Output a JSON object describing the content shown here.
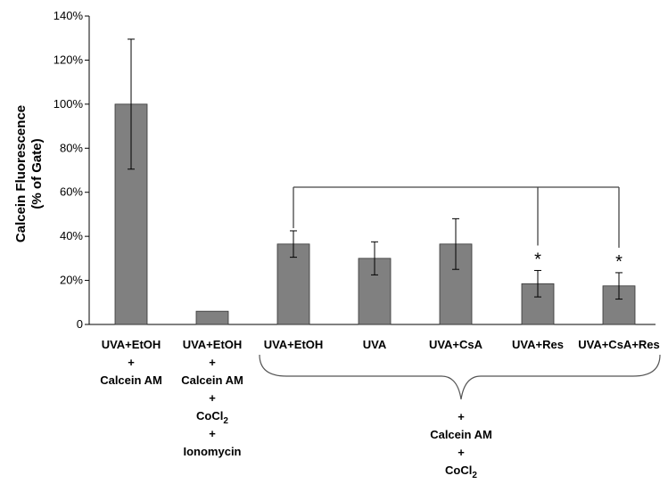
{
  "chart_data": {
    "type": "bar",
    "ylabel_lines": [
      "Calcein Fluorescence",
      "(% of Gate)"
    ],
    "ylim": [
      0,
      140
    ],
    "yticks": [
      "0",
      "20%",
      "40%",
      "60%",
      "80%",
      "100%",
      "120%",
      "140%"
    ],
    "categories": [
      [
        "UVA+EtOH",
        "+",
        "Calcein AM"
      ],
      [
        "UVA+EtOH",
        "+",
        "Calcein AM",
        "+",
        "CoCl2",
        "+",
        "Ionomycin"
      ],
      [
        "UVA+EtOH"
      ],
      [
        "UVA"
      ],
      [
        "UVA+CsA"
      ],
      [
        "UVA+Res"
      ],
      [
        "UVA+CsA+Res"
      ]
    ],
    "values": [
      100,
      6,
      36.5,
      30,
      36.5,
      18.5,
      17.5
    ],
    "errors": [
      29.5,
      0,
      6,
      7.5,
      11.5,
      6,
      6
    ],
    "significance": [
      "",
      "",
      "",
      "",
      "",
      "*",
      "*"
    ],
    "bar_color": "#808080",
    "grid": false,
    "group_label_lines": [
      "+",
      "Calcein AM",
      "+",
      "CoCl2"
    ],
    "group_members": [
      2,
      3,
      4,
      5,
      6
    ],
    "comparison_bracket": {
      "reference": 2,
      "compared": [
        5,
        6
      ]
    }
  }
}
